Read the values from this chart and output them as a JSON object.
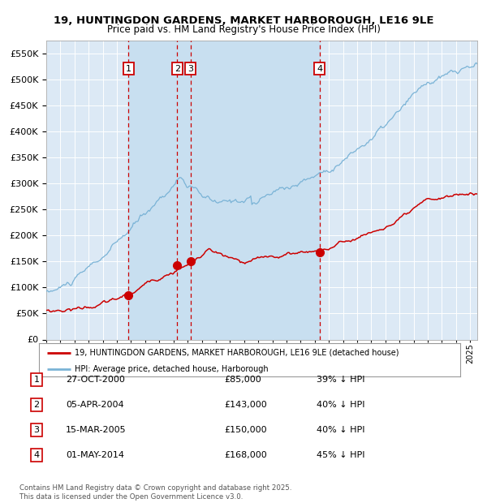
{
  "title": "19, HUNTINGDON GARDENS, MARKET HARBOROUGH, LE16 9LE",
  "subtitle": "Price paid vs. HM Land Registry's House Price Index (HPI)",
  "background_color": "#ffffff",
  "plot_bg_color": "#dce9f5",
  "grid_color": "#ffffff",
  "ylim": [
    0,
    575000
  ],
  "yticks": [
    0,
    50000,
    100000,
    150000,
    200000,
    250000,
    300000,
    350000,
    400000,
    450000,
    500000,
    550000
  ],
  "xlim_start": 1995.0,
  "xlim_end": 2025.5,
  "sale_dates": [
    2000.82,
    2004.26,
    2005.21,
    2014.33
  ],
  "sale_prices": [
    85000,
    143000,
    150000,
    168000
  ],
  "sale_labels": [
    "1",
    "2",
    "3",
    "4"
  ],
  "legend_line1": "19, HUNTINGDON GARDENS, MARKET HARBOROUGH, LE16 9LE (detached house)",
  "legend_line2": "HPI: Average price, detached house, Harborough",
  "table_rows": [
    [
      "1",
      "27-OCT-2000",
      "£85,000",
      "39% ↓ HPI"
    ],
    [
      "2",
      "05-APR-2004",
      "£143,000",
      "40% ↓ HPI"
    ],
    [
      "3",
      "15-MAR-2005",
      "£150,000",
      "40% ↓ HPI"
    ],
    [
      "4",
      "01-MAY-2014",
      "£168,000",
      "45% ↓ HPI"
    ]
  ],
  "footer": "Contains HM Land Registry data © Crown copyright and database right 2025.\nThis data is licensed under the Open Government Licence v3.0.",
  "hpi_color": "#7ab3d6",
  "price_color": "#cc0000",
  "dashed_line_color": "#cc0000",
  "span_color": "#c8dff0"
}
